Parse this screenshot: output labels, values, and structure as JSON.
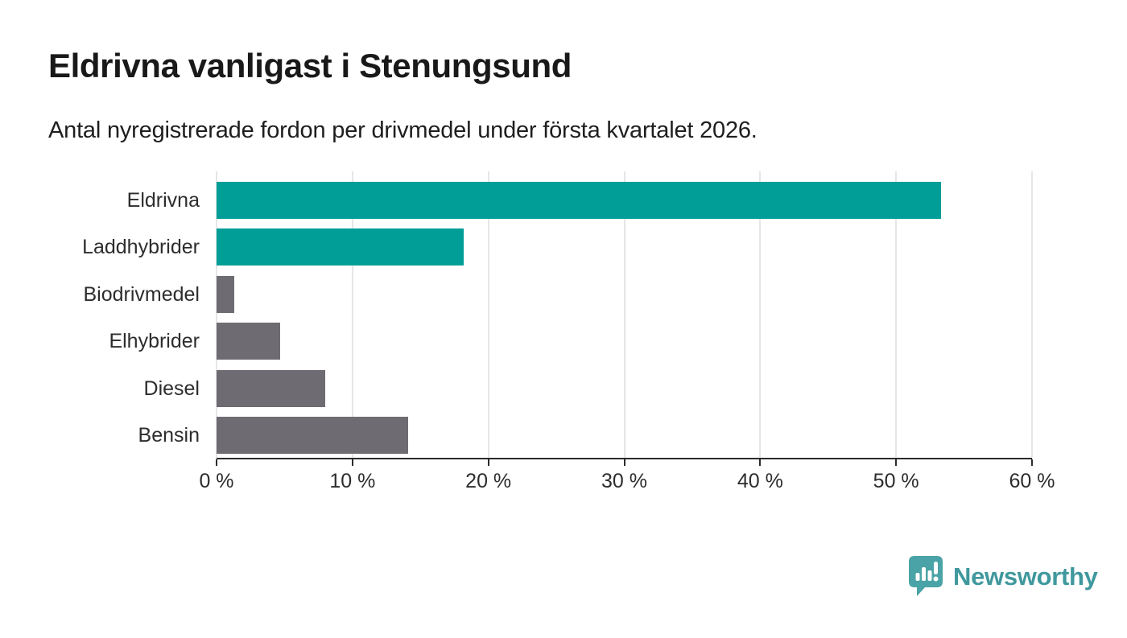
{
  "chart_data": {
    "type": "bar",
    "orientation": "horizontal",
    "title": "Eldrivna vanligast i Stenungsund",
    "subtitle": "Antal nyregistrerade fordon per drivmedel under första kvartalet 2026.",
    "categories": [
      "Eldrivna",
      "Laddhybrider",
      "Biodrivmedel",
      "Elhybrider",
      "Diesel",
      "Bensin"
    ],
    "values": [
      53.3,
      18.2,
      1.3,
      4.7,
      8.0,
      14.1
    ],
    "unit": "%",
    "bar_colors": [
      "#009e97",
      "#009e97",
      "#6e6c72",
      "#6e6c72",
      "#6e6c72",
      "#6e6c72"
    ],
    "xlim": [
      0,
      60
    ],
    "x_ticks": [
      {
        "value": 0,
        "label": "0 %"
      },
      {
        "value": 10,
        "label": "10 %"
      },
      {
        "value": 20,
        "label": "20 %"
      },
      {
        "value": 30,
        "label": "30 %"
      },
      {
        "value": 40,
        "label": "40 %"
      },
      {
        "value": 50,
        "label": "50 %"
      },
      {
        "value": 60,
        "label": "60 %"
      },
      {
        "value": 60,
        "label": ""
      }
    ],
    "grid": "vertical-gridlines-on",
    "legend": "none",
    "ylabel": "",
    "xlabel": ""
  },
  "branding": {
    "name": "Newsworthy",
    "icon": "newsworthy-speech-bubble-barchart-icon",
    "text_color": "#3f989d",
    "icon_color": "#4aa3a6"
  },
  "colors": {
    "accent_teal": "#009e97",
    "neutral_gray": "#6e6c72",
    "axis": "#2b2b2b",
    "gridline": "#e6e6e6",
    "background": "#ffffff",
    "text": "#191919"
  }
}
